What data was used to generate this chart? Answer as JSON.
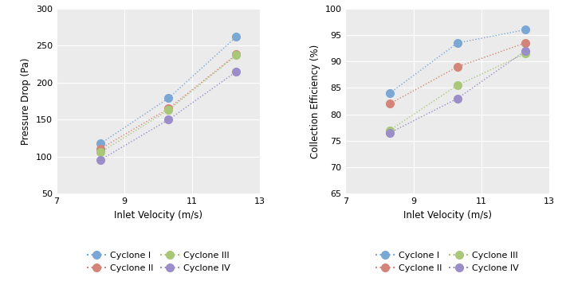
{
  "left_chart": {
    "xlabel": "Inlet Velocity (m/s)",
    "ylabel": "Pressure Drop (Pa)",
    "xlim": [
      7,
      13
    ],
    "ylim": [
      50,
      300
    ],
    "xticks": [
      7,
      9,
      11,
      13
    ],
    "yticks": [
      50,
      100,
      150,
      200,
      250,
      300
    ],
    "series": [
      {
        "label": "Cyclone I",
        "color": "#7BA7D4",
        "x": [
          8.3,
          10.3,
          12.3
        ],
        "y": [
          118,
          179,
          262
        ]
      },
      {
        "label": "Cyclone II",
        "color": "#D4857A",
        "x": [
          8.3,
          10.3,
          12.3
        ],
        "y": [
          111,
          165,
          238
        ]
      },
      {
        "label": "Cyclone III",
        "color": "#A8C878",
        "x": [
          8.3,
          10.3,
          12.3
        ],
        "y": [
          106,
          163,
          237
        ]
      },
      {
        "label": "Cyclone IV",
        "color": "#9B8DC8",
        "x": [
          8.3,
          10.3,
          12.3
        ],
        "y": [
          96,
          150,
          215
        ]
      }
    ]
  },
  "right_chart": {
    "xlabel": "Inlet Velocity (m/s)",
    "ylabel": "Collection Efficiency (%)",
    "xlim": [
      7,
      13
    ],
    "ylim": [
      65,
      100
    ],
    "xticks": [
      7,
      9,
      11,
      13
    ],
    "yticks": [
      65,
      70,
      75,
      80,
      85,
      90,
      95,
      100
    ],
    "series": [
      {
        "label": "Cyclone I",
        "color": "#7BA7D4",
        "x": [
          8.3,
          10.3,
          12.3
        ],
        "y": [
          84.0,
          93.5,
          96.0
        ]
      },
      {
        "label": "Cyclone II",
        "color": "#D4857A",
        "x": [
          8.3,
          10.3,
          12.3
        ],
        "y": [
          82.0,
          89.0,
          93.5
        ]
      },
      {
        "label": "Cyclone III",
        "color": "#A8C878",
        "x": [
          8.3,
          10.3,
          12.3
        ],
        "y": [
          77.0,
          85.5,
          91.5
        ]
      },
      {
        "label": "Cyclone IV",
        "color": "#9B8DC8",
        "x": [
          8.3,
          10.3,
          12.3
        ],
        "y": [
          76.5,
          83.0,
          92.0
        ]
      }
    ]
  },
  "marker_size": 7,
  "linewidth": 1.0,
  "bg_color": "#FFFFFF",
  "plot_bg_color": "#EBEBEB",
  "grid_color": "#FFFFFF",
  "xlabel_fontsize": 8.5,
  "ylabel_fontsize": 8.5,
  "tick_fontsize": 8,
  "legend_fontsize": 8
}
